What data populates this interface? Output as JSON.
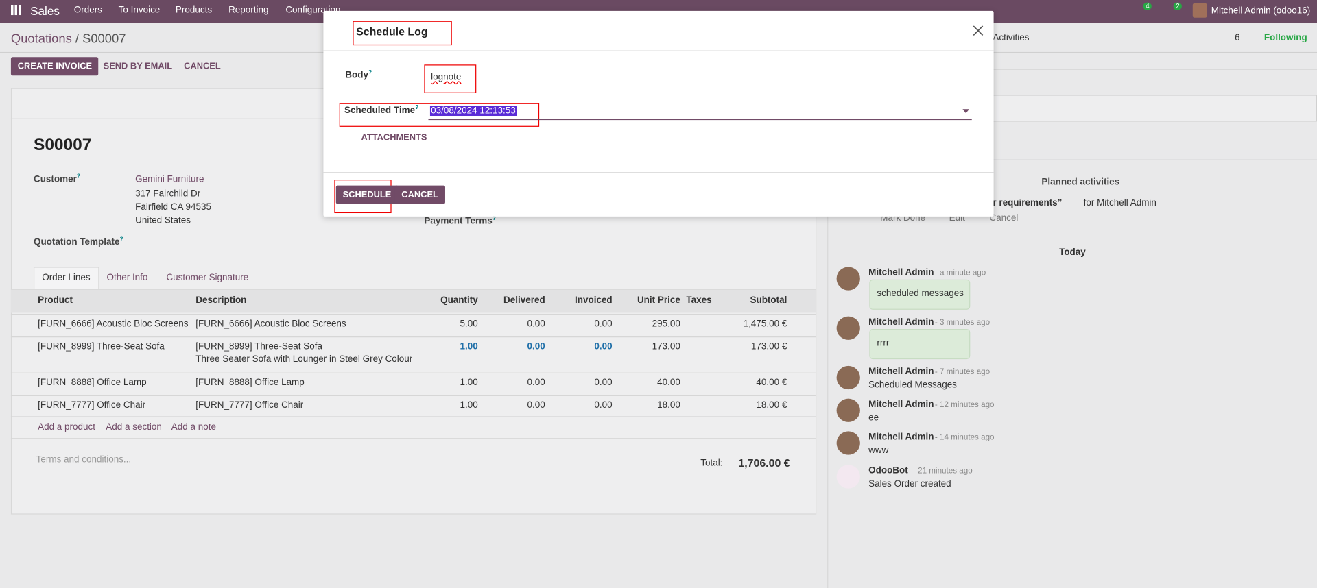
{
  "navbar": {
    "app": "Sales",
    "menu": [
      "Orders",
      "To Invoice",
      "Products",
      "Reporting",
      "Configuration"
    ],
    "messages_count": "4",
    "activities_count": "2",
    "user": "Mitchell Admin (odoo16)"
  },
  "breadcrumb": {
    "parent": "Quotations",
    "separator": "/",
    "current": "S00007"
  },
  "actions": [
    "CREATE INVOICE",
    "SEND BY EMAIL",
    "CANCEL"
  ],
  "chatter_top": {
    "activities": "Activities",
    "followers": "6",
    "following": "Following"
  },
  "form": {
    "name": "S00007",
    "help": "?",
    "customer_label": "Customer",
    "customer": "Gemini Furniture",
    "address": [
      "317 Fairchild Dr",
      "Fairfield CA 94535",
      "United States"
    ],
    "payment_terms_label": "Payment Terms",
    "template_label": "Quotation Template"
  },
  "tabs": [
    "Order Lines",
    "Other Info",
    "Customer Signature"
  ],
  "table": {
    "columns": [
      "Product",
      "Description",
      "Quantity",
      "Delivered",
      "Invoiced",
      "Unit Price",
      "Taxes",
      "Subtotal"
    ],
    "rows": [
      {
        "product": "[FURN_6666] Acoustic Bloc Screens",
        "description": "[FURN_6666] Acoustic Bloc Screens",
        "quantity": "5.00",
        "delivered": "0.00",
        "invoiced": "0.00",
        "unit_price": "295.00",
        "subtotal": "1,475.00 €"
      },
      {
        "product": "[FURN_8999] Three-Seat Sofa",
        "description": "[FURN_8999] Three-Seat Sofa",
        "note": "Three Seater Sofa with Lounger in Steel Grey Colour",
        "quantity": "1.00",
        "delivered": "0.00",
        "invoiced": "0.00",
        "unit_price": "173.00",
        "subtotal": "173.00 €"
      },
      {
        "product": "[FURN_8888] Office Lamp",
        "description": "[FURN_8888] Office Lamp",
        "quantity": "1.00",
        "delivered": "0.00",
        "invoiced": "0.00",
        "unit_price": "40.00",
        "subtotal": "40.00 €"
      },
      {
        "product": "[FURN_7777] Office Chair",
        "description": "[FURN_7777] Office Chair",
        "quantity": "1.00",
        "delivered": "0.00",
        "invoiced": "0.00",
        "unit_price": "18.00",
        "subtotal": "18.00 €"
      }
    ],
    "add_links": [
      "Add a product",
      "Add a section",
      "Add a note"
    ],
    "terms_placeholder": "Terms and conditions...",
    "total_label": "Total:",
    "total": "1,706.00 €"
  },
  "chatter": {
    "planned": "Planned activities",
    "activity_title": "r requirements”",
    "activity_for": "for Mitchell Admin",
    "activity_actions": [
      "Mark Done",
      "Edit",
      "Cancel"
    ],
    "today": "Today",
    "messages": [
      {
        "author": "Mitchell Admin",
        "time": "- a minute ago",
        "body": "scheduled messages",
        "bubble": true
      },
      {
        "author": "Mitchell Admin",
        "time": "- 3 minutes ago",
        "body": "rrrr",
        "bubble": true
      },
      {
        "author": "Mitchell Admin",
        "time": "- 7 minutes ago",
        "body": "Scheduled Messages",
        "bubble": false
      },
      {
        "author": "Mitchell Admin",
        "time": "- 12 minutes ago",
        "body": "ee",
        "bubble": false
      },
      {
        "author": "Mitchell Admin",
        "time": "- 14 minutes ago",
        "body": "www",
        "bubble": false
      },
      {
        "author": "OdooBot",
        "time": "- 21 minutes ago",
        "body": "Sales Order created",
        "bubble": false
      }
    ]
  },
  "dialog": {
    "title": "Schedule Log",
    "body_label": "Body",
    "help": "?",
    "body_value": "lognote",
    "time_label": "Scheduled Time",
    "time_value": "03/08/2024 12:13:53",
    "attachments": "ATTACHMENTS",
    "buttons": [
      "SCHEDULE",
      "CANCEL"
    ]
  }
}
